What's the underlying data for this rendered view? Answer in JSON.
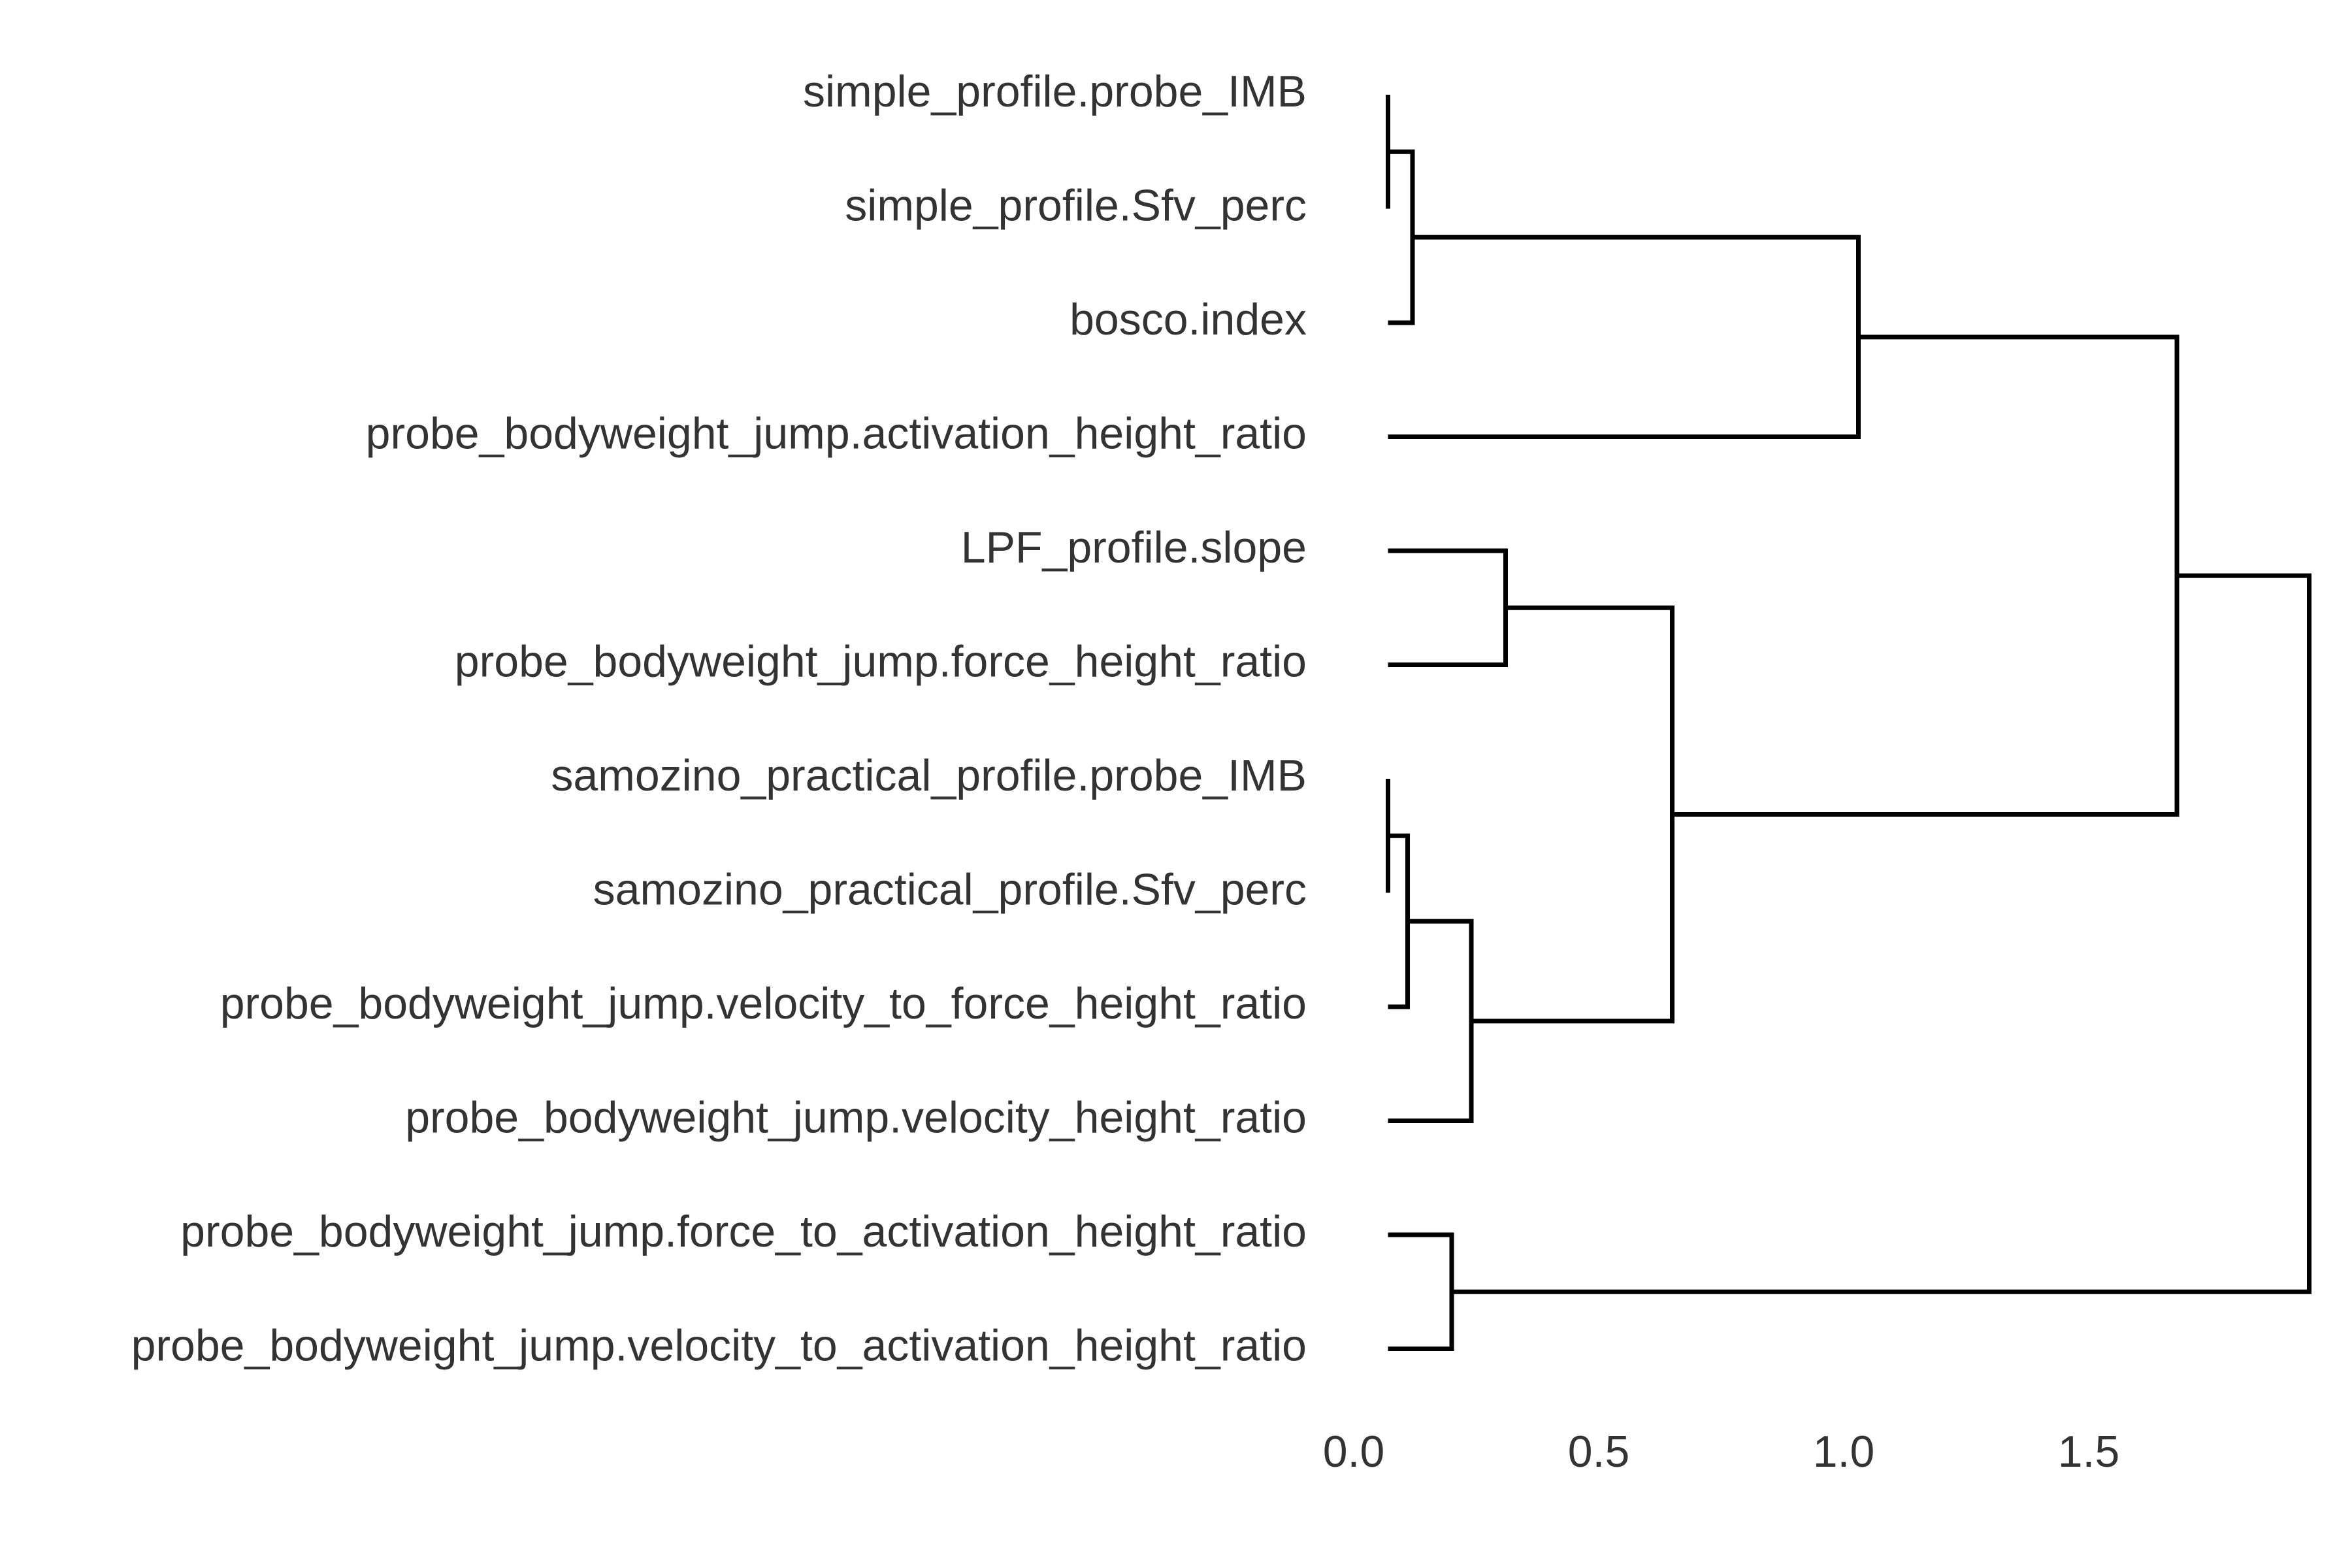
{
  "chart_data": {
    "type": "dendrogram",
    "orientation": "horizontal",
    "title": "",
    "xlabel": "",
    "ylabel": "",
    "xlim": [
      0.0,
      1.95
    ],
    "x_ticks": [
      0.0,
      0.5,
      1.0,
      1.5
    ],
    "x_tick_labels": [
      "0.0",
      "0.5",
      "1.0",
      "1.5"
    ],
    "grid": false,
    "leaves": [
      "simple_profile.probe_IMB",
      "simple_profile.Sfv_perc",
      "bosco.index",
      "probe_bodyweight_jump.activation_height_ratio",
      "LPF_profile.slope",
      "probe_bodyweight_jump.force_height_ratio",
      "samozino_practical_profile.probe_IMB",
      "samozino_practical_profile.Sfv_perc",
      "probe_bodyweight_jump.velocity_to_force_height_ratio",
      "probe_bodyweight_jump.velocity_height_ratio",
      "probe_bodyweight_jump.force_to_activation_height_ratio",
      "probe_bodyweight_jump.velocity_to_activation_height_ratio"
    ],
    "merges": [
      {
        "id": "A",
        "children": [
          "simple_profile.probe_IMB",
          "simple_profile.Sfv_perc"
        ],
        "height": 0.07
      },
      {
        "id": "B",
        "children": [
          "A",
          "bosco.index"
        ],
        "height": 0.12
      },
      {
        "id": "C",
        "children": [
          "B",
          "probe_bodyweight_jump.activation_height_ratio"
        ],
        "height": 1.03
      },
      {
        "id": "D",
        "children": [
          "LPF_profile.slope",
          "probe_bodyweight_jump.force_height_ratio"
        ],
        "height": 0.31
      },
      {
        "id": "E",
        "children": [
          "samozino_practical_profile.probe_IMB",
          "samozino_practical_profile.Sfv_perc"
        ],
        "height": 0.07
      },
      {
        "id": "F",
        "children": [
          "E",
          "probe_bodyweight_jump.velocity_to_force_height_ratio"
        ],
        "height": 0.11
      },
      {
        "id": "G",
        "children": [
          "F",
          "probe_bodyweight_jump.velocity_height_ratio"
        ],
        "height": 0.24
      },
      {
        "id": "H",
        "children": [
          "D",
          "G"
        ],
        "height": 0.65
      },
      {
        "id": "I",
        "children": [
          "C",
          "H"
        ],
        "height": 1.68
      },
      {
        "id": "J",
        "children": [
          "probe_bodyweight_jump.force_to_activation_height_ratio",
          "probe_bodyweight_jump.velocity_to_activation_height_ratio"
        ],
        "height": 0.2
      },
      {
        "id": "K",
        "children": [
          "I",
          "J"
        ],
        "height": 1.95
      }
    ],
    "leaf_baseline": 0.07
  }
}
